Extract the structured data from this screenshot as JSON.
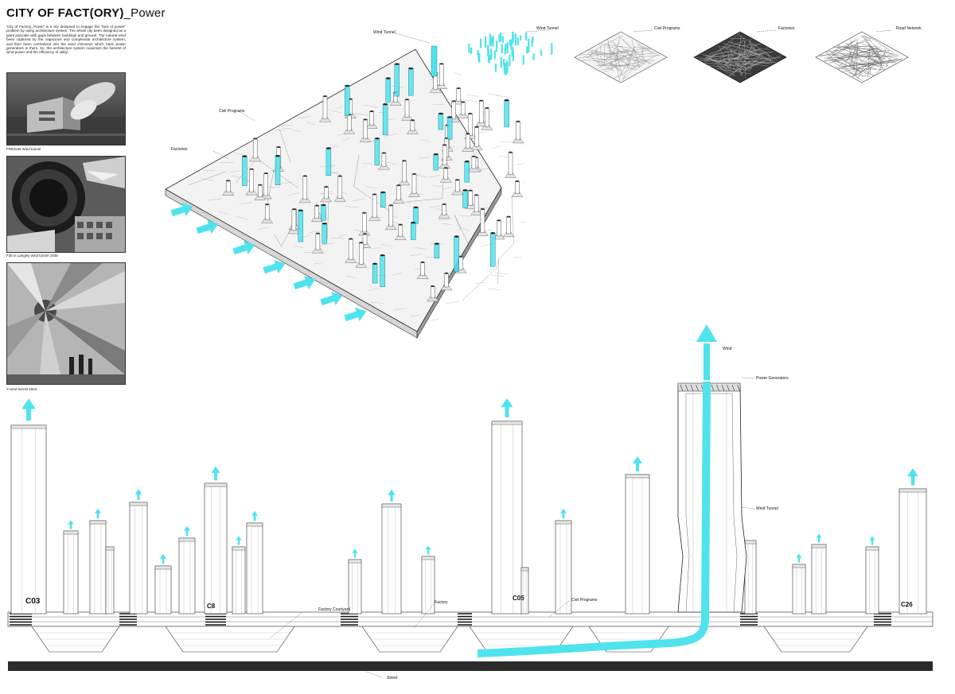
{
  "title": {
    "main": "CITY OF FACT(ORY)",
    "sub": "_Power"
  },
  "intro": "'City of Factory_Power' is a city designed to engage the \"lack of power\" problem by using architecture system. The whole city been designed as a giant pancake with gaps between buildings and ground. The natural wind been captured by the capacious and complexate architecture system, and then been centralized into the wind chimneys which have power generators in them. So, the architecture system maximize the harvest of wind power and the efficiency of utility.",
  "photos": [
    {
      "caption": "FRESUB Wind tunnel"
    },
    {
      "caption": "F35 in Langley wind tunnel 1938"
    },
    {
      "caption": "X wind tunnel 1944"
    }
  ],
  "axon_labels": {
    "wind_tunnel": "Wind Tunnel",
    "civil_programs": "Civil Programs",
    "factories": "Factories"
  },
  "layer_panels": [
    {
      "label": "Wind Tunnel"
    },
    {
      "label": "Civil Programs"
    },
    {
      "label": "Factories"
    },
    {
      "label": "Road Network"
    }
  ],
  "section_labels": {
    "wind": "Wind",
    "power_generators": "Power Generators",
    "wind_tunnel": "Wind Tunnel",
    "factory_courtyard": "Factory Courtyard",
    "factory": "Factory",
    "civil_programs": "Civil Programs",
    "street": "Street"
  },
  "tower_codes": {
    "c03": "C03",
    "c08": "C8",
    "c05": "C05",
    "c26": "C26"
  },
  "colors": {
    "accent": "#4fe3ee",
    "ink": "#111111",
    "ground": "#2b2b2b"
  }
}
